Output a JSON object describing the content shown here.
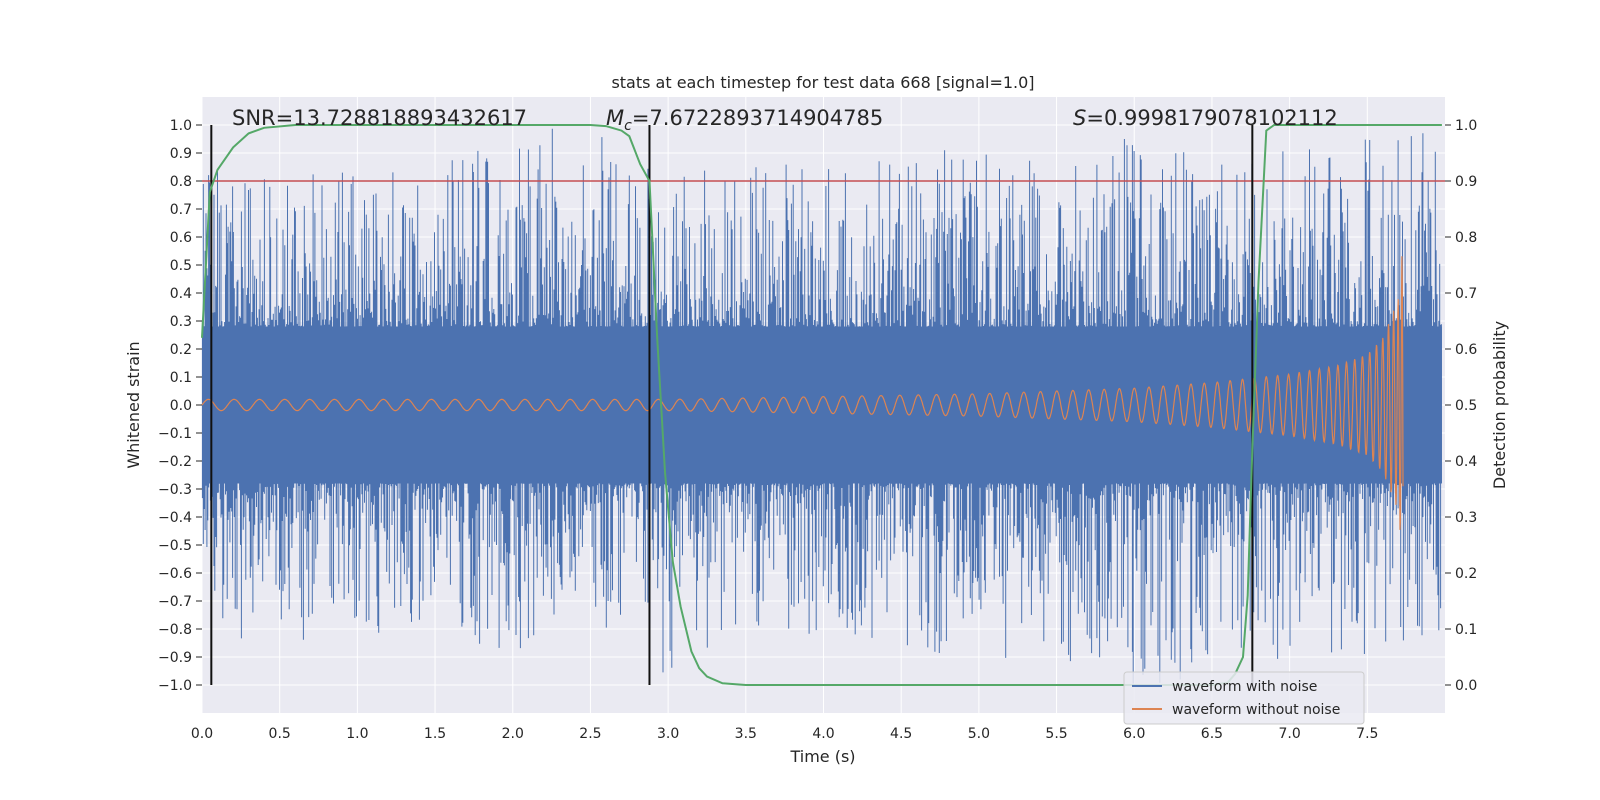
{
  "chart_data": {
    "type": "line",
    "title": "stats at each timestep for test data 668 [signal=1.0]",
    "xlabel": "Time (s)",
    "ylabel": "Whitened strain",
    "y2label": "Detection probability",
    "xlim": [
      0.0,
      8.0
    ],
    "ylim": [
      -1.1,
      1.1
    ],
    "y2lim": [
      -0.05,
      1.05
    ],
    "xticks": [
      "0.0",
      "0.5",
      "1.0",
      "1.5",
      "2.0",
      "2.5",
      "3.0",
      "3.5",
      "4.0",
      "4.5",
      "5.0",
      "5.5",
      "6.0",
      "6.5",
      "7.0",
      "7.5"
    ],
    "yticks": [
      "1.0",
      "0.9",
      "0.8",
      "0.7",
      "0.6",
      "0.5",
      "0.4",
      "0.3",
      "0.2",
      "0.1",
      "0.0",
      "−0.1",
      "−0.2",
      "−0.3",
      "−0.4",
      "−0.5",
      "−0.6",
      "−0.7",
      "−0.8",
      "−0.9",
      "−1.0"
    ],
    "y2ticks": [
      "1.0",
      "0.9",
      "0.8",
      "0.7",
      "0.6",
      "0.5",
      "0.4",
      "0.3",
      "0.2",
      "0.1",
      "0.0"
    ],
    "annotations": {
      "snr": "SNR=13.728818893432617",
      "mc_symbol": "M",
      "mc_sub": "c",
      "mc_value": "=7.6722893714904785",
      "s_symbol": "S",
      "s_value": "=0.9998179078102112"
    },
    "threshold": {
      "value": 0.8,
      "axis": "left",
      "color": "#c44e52"
    },
    "vertical_lines_x": [
      0.06,
      2.88,
      6.76
    ],
    "legend": {
      "position": "lower-right",
      "entries": [
        {
          "name": "waveform with noise",
          "color": "#4c72b0"
        },
        {
          "name": "waveform without noise",
          "color": "#dd8452"
        }
      ]
    },
    "series": [
      {
        "name": "waveform with noise",
        "color": "#4c72b0",
        "envelope_x": [
          0.0,
          0.5,
          1.0,
          1.5,
          2.0,
          2.5,
          3.0,
          3.5,
          4.0,
          4.5,
          5.0,
          5.5,
          6.0,
          6.5,
          7.0,
          7.5,
          7.98
        ],
        "envelope_max": [
          0.86,
          0.85,
          0.84,
          0.84,
          1.0,
          0.99,
          0.82,
          0.86,
          0.92,
          0.95,
          0.9,
          0.88,
          0.96,
          0.88,
          0.92,
          0.95,
          0.98
        ],
        "envelope_min": [
          -0.82,
          -0.85,
          -0.82,
          -0.8,
          -0.91,
          -0.82,
          -0.98,
          -0.8,
          -0.84,
          -0.86,
          -0.94,
          -0.9,
          -1.0,
          -1.0,
          -0.9,
          -0.92,
          -0.86
        ]
      },
      {
        "name": "waveform without noise",
        "color": "#dd8452",
        "envelope_x": [
          0.0,
          1.0,
          2.0,
          3.0,
          4.0,
          5.0,
          6.0,
          6.5,
          7.0,
          7.3,
          7.5,
          7.6,
          7.7,
          7.73,
          7.74
        ],
        "amplitude": [
          0.02,
          0.02,
          0.02,
          0.02,
          0.03,
          0.04,
          0.06,
          0.08,
          0.11,
          0.14,
          0.18,
          0.24,
          0.38,
          0.58,
          0.0
        ]
      },
      {
        "name": "detection probability",
        "axis": "right",
        "color": "#55a868",
        "x": [
          0.0,
          0.05,
          0.1,
          0.2,
          0.3,
          0.4,
          0.6,
          1.0,
          2.0,
          2.5,
          2.6,
          2.7,
          2.75,
          2.82,
          2.88,
          2.93,
          2.98,
          3.03,
          3.08,
          3.15,
          3.2,
          3.25,
          3.35,
          3.5,
          4.0,
          5.0,
          6.0,
          6.5,
          6.6,
          6.65,
          6.7,
          6.73,
          6.76,
          6.8,
          6.85,
          6.9,
          7.0,
          7.5,
          7.98
        ],
        "values": [
          0.62,
          0.88,
          0.92,
          0.96,
          0.985,
          0.995,
          1.0,
          1.0,
          1.0,
          1.0,
          0.998,
          0.99,
          0.98,
          0.93,
          0.9,
          0.62,
          0.38,
          0.22,
          0.14,
          0.06,
          0.03,
          0.015,
          0.003,
          0.0,
          0.0,
          0.0,
          0.0,
          0.0,
          0.004,
          0.02,
          0.05,
          0.16,
          0.42,
          0.72,
          0.99,
          1.0,
          1.0,
          1.0,
          1.0
        ]
      }
    ]
  }
}
